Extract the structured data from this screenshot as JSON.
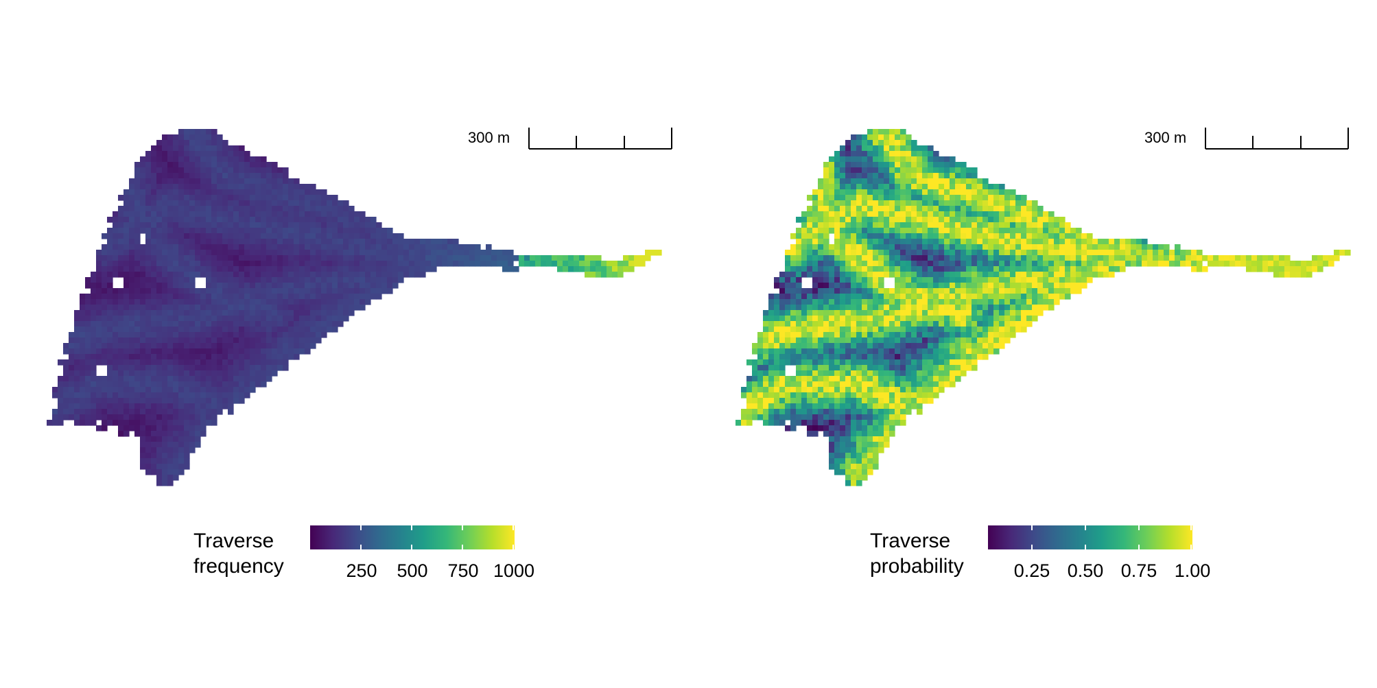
{
  "panels": [
    {
      "id": "frequency",
      "scale_bar": {
        "label": "300 m"
      },
      "legend": {
        "title_line1": "Traverse",
        "title_line2": "frequency",
        "ticks": [
          "250",
          "500",
          "750",
          "1000"
        ],
        "range": [
          0,
          1000
        ]
      },
      "palette": "viridis"
    },
    {
      "id": "probability",
      "scale_bar": {
        "label": "300 m"
      },
      "legend": {
        "title_line1": "Traverse",
        "title_line2": "probability",
        "ticks": [
          "0.25",
          "0.50",
          "0.75",
          "1.00"
        ],
        "range": [
          0,
          1
        ]
      },
      "palette": "viridis"
    }
  ],
  "colors": {
    "viridis": [
      "#440154",
      "#482878",
      "#3e4a89",
      "#31688e",
      "#26828e",
      "#1f9e89",
      "#35b779",
      "#6ece58",
      "#b5de2b",
      "#fde725"
    ]
  }
}
